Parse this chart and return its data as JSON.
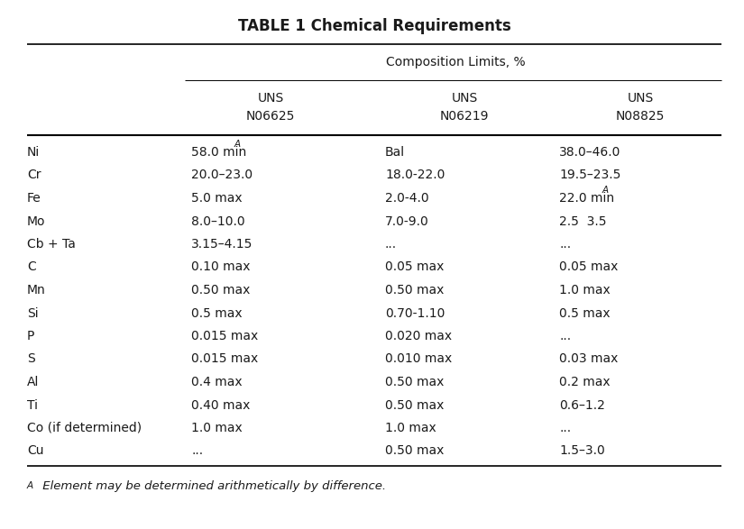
{
  "title": "TABLE 1 Chemical Requirements",
  "subtitle": "Composition Limits, %",
  "col_headers_line1": [
    "UNS",
    "UNS",
    "UNS"
  ],
  "col_headers_line2": [
    "N06625",
    "N06219",
    "N08825"
  ],
  "elements": [
    "Ni",
    "Cr",
    "Fe",
    "Mo",
    "Cb + Ta",
    "C",
    "Mn",
    "Si",
    "P",
    "S",
    "Al",
    "Ti",
    "Co (if determined)",
    "Cu"
  ],
  "col1_plain": [
    "58.0 min",
    "20.0–23.0",
    "5.0 max",
    "8.0–10.0",
    "3.15–4.15",
    "0.10 max",
    "0.50 max",
    "0.5 max",
    "0.015 max",
    "0.015 max",
    "0.4 max",
    "0.40 max",
    "1.0 max",
    "..."
  ],
  "col1_super": [
    true,
    false,
    false,
    false,
    false,
    false,
    false,
    false,
    false,
    false,
    false,
    false,
    false,
    false
  ],
  "col2_plain": [
    "Bal",
    "18.0-22.0",
    "2.0-4.0",
    "7.0-9.0",
    "...",
    "0.05 max",
    "0.50 max",
    "0.70-1.10",
    "0.020 max",
    "0.010 max",
    "0.50 max",
    "0.50 max",
    "1.0 max",
    "0.50 max"
  ],
  "col2_super": [
    false,
    false,
    false,
    false,
    false,
    false,
    false,
    false,
    false,
    false,
    false,
    false,
    false,
    false
  ],
  "col3_plain": [
    "38.0–46.0",
    "19.5–23.5",
    "22.0 min",
    "2.5  3.5",
    "...",
    "0.05 max",
    "1.0 max",
    "0.5 max",
    "...",
    "0.03 max",
    "0.2 max",
    "0.6–1.2",
    "...",
    "1.5–3.0"
  ],
  "col3_super": [
    false,
    false,
    true,
    false,
    false,
    false,
    false,
    false,
    false,
    false,
    false,
    false,
    false,
    false
  ],
  "footnote_prefix": "A",
  "footnote_text": " Element may be determined arithmetically by difference.",
  "bg_color": "#ffffff",
  "text_color": "#1a1a1a",
  "line_color": "#000000",
  "title_fontsize": 12,
  "body_fontsize": 10,
  "footnote_fontsize": 9.5
}
